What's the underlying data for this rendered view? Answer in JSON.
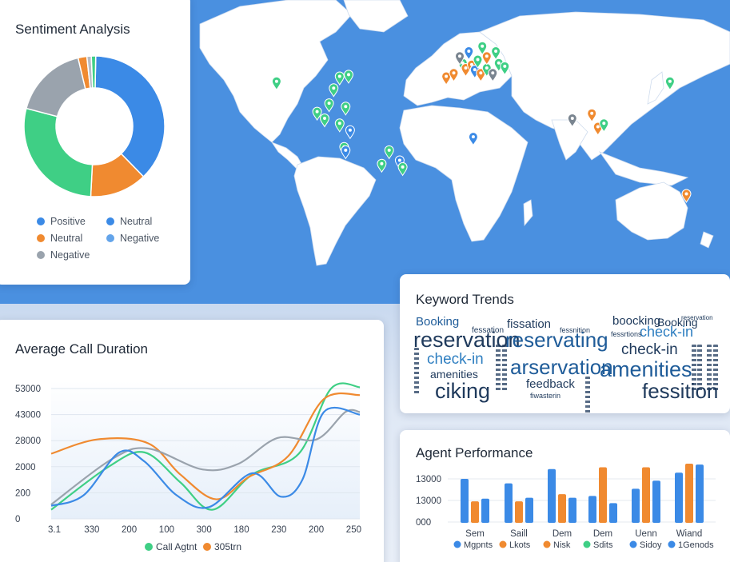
{
  "sentiment": {
    "title": "Sentiment Analysis",
    "slices": [
      {
        "label": "Neutral",
        "value": 37,
        "color": "#3b8ae6"
      },
      {
        "label": "Neutral",
        "value": 13,
        "color": "#f08a30"
      },
      {
        "label": "Positive",
        "value": 28,
        "color": "#3fcf85"
      },
      {
        "label": "Negative",
        "value": 17,
        "color": "#9aa3ad"
      },
      {
        "label": "Neutral",
        "value": 2,
        "color": "#f08a30"
      },
      {
        "label": "Negative",
        "value": 1,
        "color": "#b7bcc4"
      },
      {
        "label": "Positive",
        "value": 1,
        "color": "#3fcf85"
      }
    ],
    "legend": [
      {
        "label": "Positive",
        "color": "#3b8ae6"
      },
      {
        "label": "Neutral",
        "color": "#3b8ae6"
      },
      {
        "label": "Neutral",
        "color": "#f08a30"
      },
      {
        "label": "Negative",
        "color": "#63a4ea"
      },
      {
        "label": "Negative",
        "color": "#9aa3ad"
      }
    ]
  },
  "map": {
    "ocean_color": "#4a90e0",
    "land_color": "#ffffff",
    "markers": [
      {
        "lon": -122,
        "lat": 37,
        "color": "#3fcf85"
      },
      {
        "lon": -80,
        "lat": 40,
        "color": "#3fcf85"
      },
      {
        "lon": -74,
        "lat": 41,
        "color": "#3fcf85"
      },
      {
        "lon": -84,
        "lat": 33,
        "color": "#3fcf85"
      },
      {
        "lon": -87,
        "lat": 24,
        "color": "#3fcf85"
      },
      {
        "lon": -95,
        "lat": 19,
        "color": "#3fcf85"
      },
      {
        "lon": -90,
        "lat": 15,
        "color": "#3fcf85"
      },
      {
        "lon": -80,
        "lat": 12,
        "color": "#3fcf85"
      },
      {
        "lon": -76,
        "lat": 22,
        "color": "#3fcf85"
      },
      {
        "lon": -73,
        "lat": 8,
        "color": "#3b8ae6"
      },
      {
        "lon": -77,
        "lat": -2,
        "color": "#3fcf85"
      },
      {
        "lon": -76,
        "lat": -4,
        "color": "#3b8ae6"
      },
      {
        "lon": -47,
        "lat": -4,
        "color": "#3fcf85"
      },
      {
        "lon": -40,
        "lat": -10,
        "color": "#3b8ae6"
      },
      {
        "lon": -52,
        "lat": -12,
        "color": "#3fcf85"
      },
      {
        "lon": -38,
        "lat": -14,
        "color": "#3fcf85"
      },
      {
        "lon": -9,
        "lat": 40,
        "color": "#f08a30"
      },
      {
        "lon": -4,
        "lat": 42,
        "color": "#f08a30"
      },
      {
        "lon": 2,
        "lat": 48,
        "color": "#3fcf85"
      },
      {
        "lon": 4,
        "lat": 45,
        "color": "#f08a30"
      },
      {
        "lon": 8,
        "lat": 47,
        "color": "#f08a30"
      },
      {
        "lon": 10,
        "lat": 44,
        "color": "#3b8ae6"
      },
      {
        "lon": 12,
        "lat": 50,
        "color": "#3fcf85"
      },
      {
        "lon": 14,
        "lat": 42,
        "color": "#f08a30"
      },
      {
        "lon": 6,
        "lat": 55,
        "color": "#3b8ae6"
      },
      {
        "lon": 15,
        "lat": 58,
        "color": "#3fcf85"
      },
      {
        "lon": 18,
        "lat": 45,
        "color": "#3fcf85"
      },
      {
        "lon": 22,
        "lat": 42,
        "color": "#7a8590"
      },
      {
        "lon": 26,
        "lat": 48,
        "color": "#3fcf85"
      },
      {
        "lon": 24,
        "lat": 55,
        "color": "#3fcf85"
      },
      {
        "lon": 30,
        "lat": 46,
        "color": "#3fcf85"
      },
      {
        "lon": 18,
        "lat": 52,
        "color": "#f08a30"
      },
      {
        "lon": 0,
        "lat": 52,
        "color": "#7a8590"
      },
      {
        "lon": 9,
        "lat": 4,
        "color": "#3b8ae6"
      },
      {
        "lon": 75,
        "lat": 15,
        "color": "#7a8590"
      },
      {
        "lon": 88,
        "lat": 18,
        "color": "#f08a30"
      },
      {
        "lon": 92,
        "lat": 10,
        "color": "#f08a30"
      },
      {
        "lon": 96,
        "lat": 12,
        "color": "#3fcf85"
      },
      {
        "lon": 140,
        "lat": 37,
        "color": "#3fcf85"
      },
      {
        "lon": 151,
        "lat": -30,
        "color": "#f08a30"
      }
    ]
  },
  "keywords": {
    "title": "Keyword Trends",
    "words": [
      {
        "text": "Booking",
        "color": "#1f5c99"
      },
      {
        "text": "fissation",
        "color": "#1f3a5c"
      },
      {
        "text": "boocking",
        "color": "#1f3a5c"
      },
      {
        "text": "Booking",
        "color": "#1f3a5c"
      },
      {
        "text": "reservation",
        "color": "#1f3a5c"
      },
      {
        "text": "reservating",
        "color": "#1f5c99"
      },
      {
        "text": "check-in",
        "color": "#2f7fc1"
      },
      {
        "text": "check-in",
        "color": "#1f3a5c"
      },
      {
        "text": "check-in",
        "color": "#2f7fc1"
      },
      {
        "text": "arservation",
        "color": "#1f5c99"
      },
      {
        "text": "amenities",
        "color": "#1f3a5c"
      },
      {
        "text": "amenities",
        "color": "#1f5c99"
      },
      {
        "text": "feedback",
        "color": "#1f3a5c"
      },
      {
        "text": "ciking",
        "color": "#1f3a5c"
      },
      {
        "text": "fessition",
        "color": "#1f3a5c"
      },
      {
        "text": "fessation",
        "color": "#1f3a5c"
      },
      {
        "text": "fessnition",
        "color": "#1f3a5c"
      },
      {
        "text": "fessrtions",
        "color": "#1f3a5c"
      },
      {
        "text": "reservation",
        "color": "#1f3a5c"
      },
      {
        "text": "fiwasterin",
        "color": "#1f3a5c"
      }
    ]
  },
  "duration_chart": {
    "title": "Average Call Duration",
    "legend": [
      {
        "label": "Call Agtnt",
        "color": "#3fcf85"
      },
      {
        "label": "305trn",
        "color": "#f08a30"
      }
    ],
    "chart_data": {
      "type": "line",
      "title": "Average Call Duration",
      "y_ticks": [
        "53000",
        "43000",
        "28000",
        "2000",
        "200",
        "0"
      ],
      "x_ticks": [
        "3.1",
        "330",
        "200",
        "100",
        "300",
        "180",
        "230",
        "200",
        "250"
      ],
      "tick_count": 6,
      "x_range": [
        0,
        8.6
      ],
      "series": [
        {
          "color": "#3fcf85",
          "values": [
            [
              0,
              0.35
            ],
            [
              1.6,
              2.0
            ],
            [
              2.6,
              2.55
            ],
            [
              3.6,
              1.4
            ],
            [
              4.5,
              0.35
            ],
            [
              5.6,
              1.7
            ],
            [
              6.9,
              2.5
            ],
            [
              7.8,
              5.0
            ],
            [
              8.6,
              5.05
            ]
          ]
        },
        {
          "color": "#f08a30",
          "values": [
            [
              0,
              2.5
            ],
            [
              1.3,
              3.05
            ],
            [
              2.7,
              2.9
            ],
            [
              3.6,
              1.7
            ],
            [
              4.6,
              0.75
            ],
            [
              5.5,
              1.6
            ],
            [
              6.6,
              2.4
            ],
            [
              7.6,
              4.6
            ],
            [
              8.6,
              4.75
            ]
          ]
        },
        {
          "color": "#9aa3ad",
          "values": [
            [
              0,
              0.55
            ],
            [
              1.7,
              2.3
            ],
            [
              2.7,
              2.7
            ],
            [
              4.2,
              1.9
            ],
            [
              5.2,
              2.1
            ],
            [
              6.3,
              3.1
            ],
            [
              7.4,
              3.05
            ],
            [
              8.2,
              4.1
            ],
            [
              8.6,
              4.1
            ]
          ]
        },
        {
          "color": "#3b8ae6",
          "values": [
            [
              0,
              0.5
            ],
            [
              0.9,
              0.9
            ],
            [
              1.9,
              2.55
            ],
            [
              2.6,
              2.2
            ],
            [
              3.5,
              0.9
            ],
            [
              4.4,
              0.45
            ],
            [
              5.6,
              1.75
            ],
            [
              6.4,
              0.85
            ],
            [
              7.0,
              1.5
            ],
            [
              7.6,
              4.1
            ],
            [
              8.6,
              4.0
            ]
          ]
        }
      ]
    }
  },
  "agent_chart": {
    "title": "Agent Performance",
    "legend": [
      {
        "label": "Mgpnts",
        "color": "#3b8ae6"
      },
      {
        "label": "Lkots",
        "color": "#f08a30"
      },
      {
        "label": "Nisk",
        "color": "#f08a30"
      },
      {
        "label": "Sdits",
        "color": "#3fcf85"
      },
      {
        "label": "Sidoy",
        "color": "#3b8ae6"
      },
      {
        "label": "1Genods",
        "color": "#3b8ae6"
      }
    ],
    "chart_data": {
      "type": "bar",
      "title": "Agent Performance",
      "categories": [
        "Sem",
        "Saill",
        "Dem",
        "Dem",
        "Uenn",
        "Wiand"
      ],
      "y_ticks": [
        "13000",
        "13000",
        "000"
      ],
      "y_max": 3.3,
      "groups": [
        [
          {
            "value": 2.45,
            "color": "#3b8ae6"
          },
          {
            "value": 1.2,
            "color": "#f08a30"
          },
          {
            "value": 1.35,
            "color": "#3b8ae6"
          }
        ],
        [
          {
            "value": 2.2,
            "color": "#3b8ae6"
          },
          {
            "value": 1.2,
            "color": "#f08a30"
          },
          {
            "value": 1.4,
            "color": "#3b8ae6"
          }
        ],
        [
          {
            "value": 3.0,
            "color": "#3b8ae6"
          },
          {
            "value": 1.6,
            "color": "#f08a30"
          },
          {
            "value": 1.4,
            "color": "#3b8ae6"
          }
        ],
        [
          {
            "value": 1.5,
            "color": "#3b8ae6"
          },
          {
            "value": 3.1,
            "color": "#f08a30"
          },
          {
            "value": 1.1,
            "color": "#3b8ae6"
          }
        ],
        [
          {
            "value": 1.9,
            "color": "#3b8ae6"
          },
          {
            "value": 3.1,
            "color": "#f08a30"
          },
          {
            "value": 2.35,
            "color": "#3b8ae6"
          }
        ],
        [
          {
            "value": 2.8,
            "color": "#3b8ae6"
          },
          {
            "value": 3.3,
            "color": "#f08a30"
          },
          {
            "value": 3.25,
            "color": "#3b8ae6"
          }
        ]
      ]
    }
  }
}
